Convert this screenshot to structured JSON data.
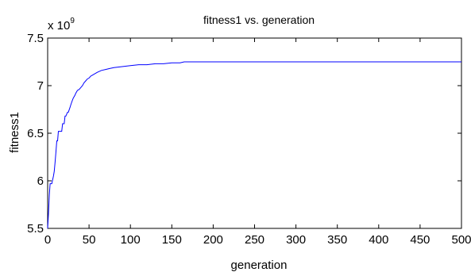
{
  "chart_data": {
    "type": "line",
    "title": "fitness1 vs. generation",
    "xlabel": "generation",
    "ylabel": "fitness1",
    "exponent_label": "x 10",
    "exponent_power": "9",
    "xlim": [
      0,
      500
    ],
    "ylim": [
      5.5,
      7.5
    ],
    "xticks": [
      0,
      50,
      100,
      150,
      200,
      250,
      300,
      350,
      400,
      450,
      500
    ],
    "yticks": [
      5.5,
      6,
      6.5,
      7,
      7.5
    ],
    "ytick_labels": [
      "5.5",
      "6",
      "6.5",
      "7",
      "7.5"
    ],
    "grid": false,
    "line_color": "#0000ff",
    "series": [
      {
        "x": [
          0,
          1,
          2,
          3,
          5,
          7,
          8,
          9,
          10,
          11,
          12,
          13,
          14,
          16,
          17,
          18,
          20,
          21,
          22,
          24,
          25,
          27,
          28,
          30,
          31,
          33,
          34,
          36,
          38,
          40,
          42,
          44,
          46,
          48,
          50,
          52,
          54,
          56,
          60,
          65,
          70,
          75,
          80,
          90,
          100,
          110,
          120,
          130,
          140,
          150,
          160,
          165,
          170,
          200,
          250,
          300,
          350,
          400,
          450,
          500
        ],
        "y": [
          5.5,
          5.65,
          5.85,
          5.97,
          5.97,
          6.05,
          6.1,
          6.2,
          6.3,
          6.42,
          6.42,
          6.52,
          6.52,
          6.52,
          6.52,
          6.6,
          6.6,
          6.68,
          6.68,
          6.72,
          6.72,
          6.77,
          6.8,
          6.85,
          6.87,
          6.9,
          6.92,
          6.95,
          6.96,
          6.98,
          7.0,
          7.03,
          7.05,
          7.07,
          7.08,
          7.1,
          7.11,
          7.12,
          7.14,
          7.16,
          7.17,
          7.18,
          7.19,
          7.2,
          7.21,
          7.22,
          7.22,
          7.23,
          7.23,
          7.24,
          7.24,
          7.25,
          7.25,
          7.25,
          7.25,
          7.25,
          7.25,
          7.25,
          7.25,
          7.25
        ]
      }
    ]
  }
}
